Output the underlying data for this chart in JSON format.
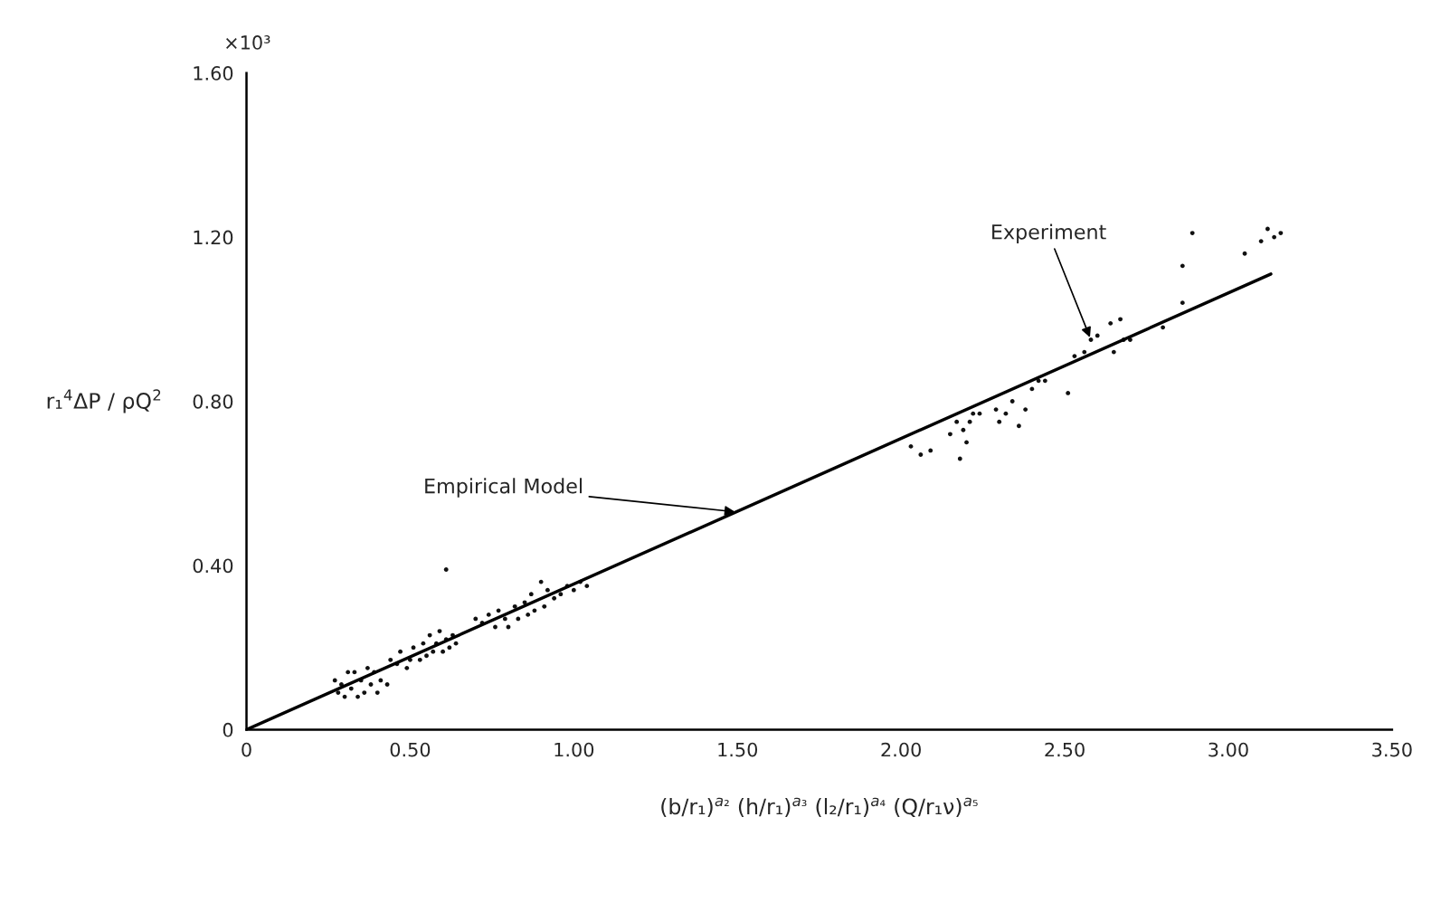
{
  "chart_data": {
    "type": "scatter",
    "xlabel": "(b/r₁)$^{a₂}$ (h/r₁)$^{a₃}$ (l₂/r₁)$^{a₄}$ (Q/r₁ν)$^{a₅}$",
    "ylabel": "r₁$^{4}$ΔP / ρQ$^{2}$",
    "annotations": [
      "×10³",
      {
        "text": "Empirical Model",
        "x": 1.5,
        "y": 0.53
      },
      {
        "text": "Experiment",
        "x": 2.58,
        "y": 0.95
      }
    ],
    "xlim": [
      0,
      3.5
    ],
    "ylim": [
      0,
      1.6
    ],
    "xticks": [
      0,
      {
        "value": 0.5,
        "label": "0.50"
      },
      {
        "value": 1.0,
        "label": "1.00"
      },
      {
        "value": 1.5,
        "label": "1.50"
      },
      {
        "value": 2.0,
        "label": "2.00"
      },
      {
        "value": 2.5,
        "label": "2.50"
      },
      {
        "value": 3.0,
        "label": "3.00"
      },
      {
        "value": 3.5,
        "label": "3.50"
      }
    ],
    "yticks": [
      0,
      {
        "value": 0.4,
        "label": "0.40"
      },
      {
        "value": 0.8,
        "label": "0.80"
      },
      {
        "value": 1.2,
        "label": "1.20"
      },
      {
        "value": 1.6,
        "label": "1.60"
      }
    ],
    "grid": false,
    "legend": false,
    "series": [
      {
        "color": "#111111",
        "marker": "circle",
        "x": [
          0.27,
          0.28,
          0.29,
          0.3,
          0.31,
          0.32,
          0.33,
          0.34,
          0.35,
          0.36,
          0.37,
          0.38,
          0.39,
          0.4,
          0.41,
          0.43,
          0.44,
          0.46,
          0.47,
          0.49,
          0.5,
          0.51,
          0.53,
          0.54,
          0.55,
          0.56,
          0.57,
          0.58,
          0.59,
          0.6,
          0.61,
          0.62,
          0.63,
          0.64,
          0.61,
          0.7,
          0.72,
          0.74,
          0.76,
          0.77,
          0.79,
          0.8,
          0.82,
          0.83,
          0.85,
          0.86,
          0.87,
          0.88,
          0.9,
          0.91,
          0.92,
          0.94,
          0.96,
          0.98,
          1.0,
          1.02,
          1.04,
          2.03,
          2.06,
          2.09,
          2.15,
          2.17,
          2.18,
          2.19,
          2.2,
          2.21,
          2.22,
          2.24,
          2.29,
          2.3,
          2.32,
          2.34,
          2.36,
          2.38,
          2.4,
          2.42,
          2.44,
          2.51,
          2.53,
          2.56,
          2.58,
          2.6,
          2.64,
          2.65,
          2.67,
          2.68,
          2.7,
          2.8,
          2.86,
          2.86,
          2.89,
          3.05,
          3.1,
          3.12,
          3.14,
          3.16
        ],
        "values": [
          0.12,
          0.09,
          0.11,
          0.08,
          0.14,
          0.1,
          0.14,
          0.08,
          0.12,
          0.09,
          0.15,
          0.11,
          0.14,
          0.09,
          0.12,
          0.11,
          0.17,
          0.16,
          0.19,
          0.15,
          0.17,
          0.2,
          0.17,
          0.21,
          0.18,
          0.23,
          0.19,
          0.21,
          0.24,
          0.19,
          0.22,
          0.2,
          0.23,
          0.21,
          0.39,
          0.27,
          0.26,
          0.28,
          0.25,
          0.29,
          0.27,
          0.25,
          0.3,
          0.27,
          0.31,
          0.28,
          0.33,
          0.29,
          0.36,
          0.3,
          0.34,
          0.32,
          0.33,
          0.35,
          0.34,
          0.36,
          0.35,
          0.69,
          0.67,
          0.68,
          0.72,
          0.75,
          0.66,
          0.73,
          0.7,
          0.75,
          0.77,
          0.77,
          0.78,
          0.75,
          0.77,
          0.8,
          0.74,
          0.78,
          0.83,
          0.85,
          0.85,
          0.82,
          0.91,
          0.92,
          0.95,
          0.96,
          0.99,
          0.92,
          1.0,
          0.95,
          0.95,
          0.98,
          1.04,
          1.13,
          1.21,
          1.16,
          1.19,
          1.22,
          1.2,
          1.21
        ]
      },
      {
        "type": "line",
        "color": "#000000",
        "x": [
          0,
          3.13
        ],
        "values": [
          0,
          1.11
        ],
        "line_style": "solid"
      }
    ]
  }
}
